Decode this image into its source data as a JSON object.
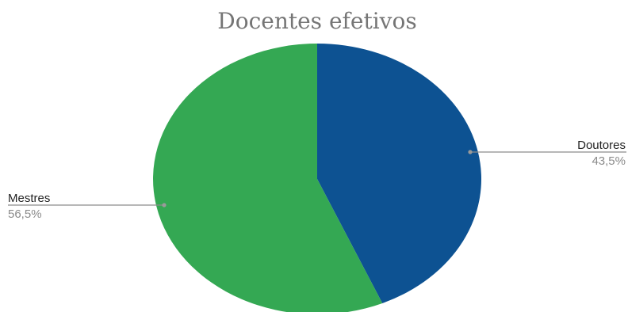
{
  "chart_data": {
    "type": "pie",
    "title": "Docentes efetivos",
    "slices": [
      {
        "label": "Doutores",
        "value": 43.5,
        "value_label": "43,5%",
        "color": "#0d5292"
      },
      {
        "label": "Mestres",
        "value": 56.5,
        "value_label": "56,5%",
        "color": "#34a853"
      }
    ],
    "start_angle": "12 o'clock",
    "direction": "clockwise",
    "legend": "none",
    "labels": "outside with leader lines"
  }
}
